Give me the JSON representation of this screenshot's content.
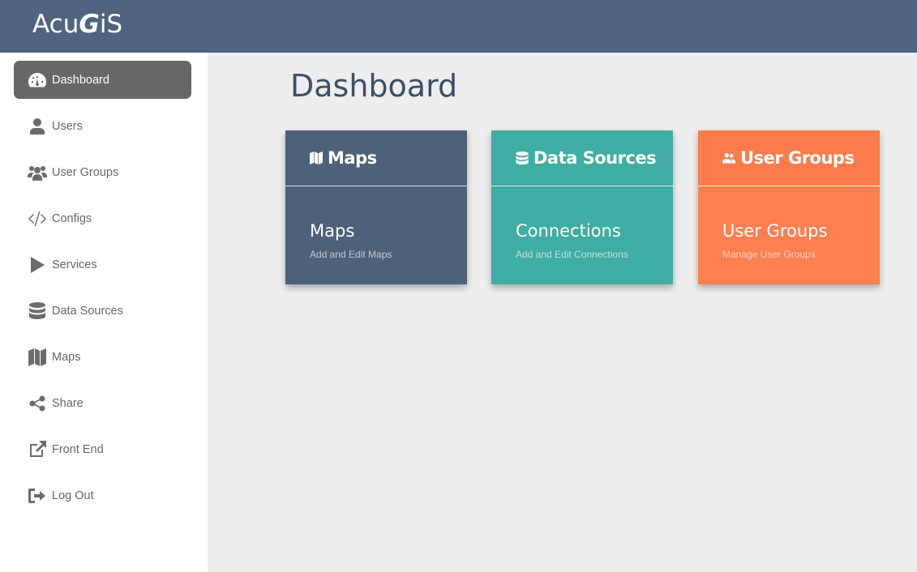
{
  "app": {
    "logo": "AcuGiS"
  },
  "sidebar": {
    "items": [
      {
        "label": "Dashboard",
        "icon": "dashboard-icon",
        "active": true
      },
      {
        "label": "Users",
        "icon": "user-icon"
      },
      {
        "label": "User Groups",
        "icon": "users-icon"
      },
      {
        "label": "Configs",
        "icon": "code-icon"
      },
      {
        "label": "Services",
        "icon": "play-icon"
      },
      {
        "label": "Data Sources",
        "icon": "database-icon"
      },
      {
        "label": "Maps",
        "icon": "map-icon"
      },
      {
        "label": "Share",
        "icon": "share-icon"
      },
      {
        "label": "Front End",
        "icon": "external-link-icon"
      },
      {
        "label": "Log Out",
        "icon": "logout-icon"
      }
    ]
  },
  "main": {
    "title": "Dashboard",
    "cards": [
      {
        "header": "Maps",
        "title": "Maps",
        "subtitle": "Add and Edit Maps",
        "color": "#4e617a",
        "icon": "map-icon"
      },
      {
        "header": "Data Sources",
        "title": "Connections",
        "subtitle": "Add and Edit Connections",
        "color": "#3fada3",
        "icon": "database-icon"
      },
      {
        "header": "User Groups",
        "title": "User Groups",
        "subtitle": "Manage User Groups",
        "color": "#fe7f50",
        "icon": "users-icon"
      }
    ]
  }
}
